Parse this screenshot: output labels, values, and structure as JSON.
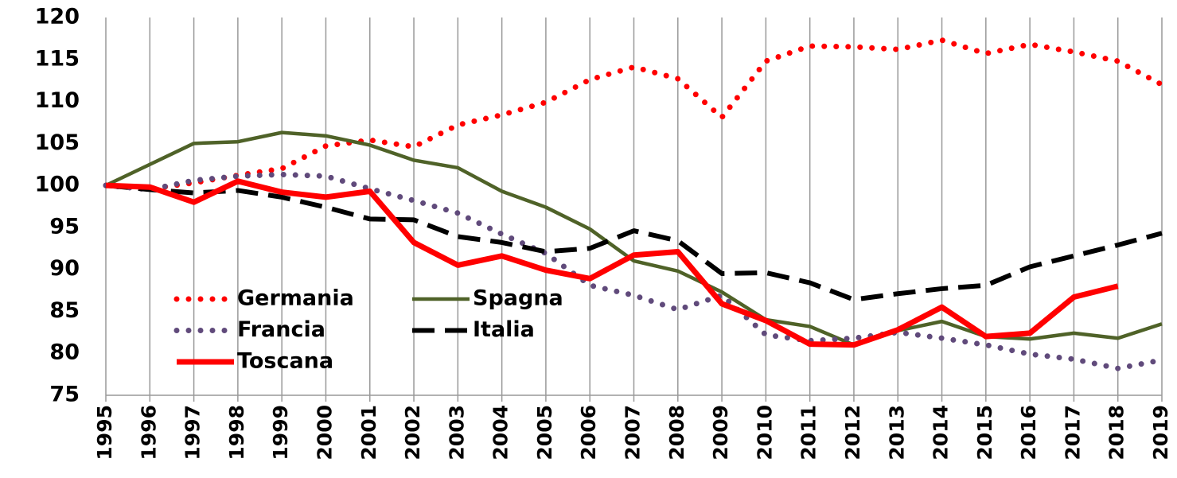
{
  "chart_data": {
    "type": "line",
    "categories": [
      "1995",
      "1996",
      "1997",
      "1998",
      "1999",
      "2000",
      "2001",
      "2002",
      "2003",
      "2004",
      "2005",
      "2006",
      "2007",
      "2008",
      "2009",
      "2010",
      "2011",
      "2012",
      "2013",
      "2014",
      "2015",
      "2016",
      "2017",
      "2018",
      "2019"
    ],
    "series": [
      {
        "name": "Germania",
        "color": "#ff0000",
        "line_style": "dotted",
        "line_width": 7,
        "values": [
          100,
          99.6,
          100.3,
          101.2,
          102,
          104.7,
          105.4,
          104.6,
          107.2,
          108.4,
          109.9,
          112.6,
          114.1,
          112.7,
          108.1,
          114.8,
          116.6,
          116.5,
          116.2,
          117.3,
          115.7,
          116.8,
          115.9,
          114.8,
          112
        ]
      },
      {
        "name": "Spagna",
        "color": "#4f6228",
        "line_style": "solid",
        "line_width": 4.5,
        "values": [
          100,
          102.5,
          105,
          105.2,
          106.3,
          105.9,
          104.8,
          103,
          102.1,
          99.3,
          97.4,
          94.8,
          91,
          89.8,
          87.3,
          84,
          83.2,
          81,
          82.7,
          83.8,
          82,
          81.7,
          82.4,
          81.8,
          83.5
        ]
      },
      {
        "name": "Francia",
        "color": "#604a7b",
        "line_style": "dotted",
        "line_width": 7,
        "values": [
          100,
          99.5,
          100.6,
          101.1,
          101.3,
          101.1,
          99.6,
          98.2,
          96.7,
          94.2,
          91.9,
          88.1,
          86.9,
          85.2,
          86.9,
          82.2,
          81.5,
          81.8,
          82.5,
          81.8,
          81,
          79.9,
          79.3,
          78.2,
          79.2
        ]
      },
      {
        "name": "Italia",
        "color": "#000000",
        "line_style": "dashed",
        "line_width": 6,
        "values": [
          100,
          99.5,
          99.1,
          99.4,
          98.6,
          97.4,
          96,
          95.9,
          93.9,
          93.2,
          92.1,
          92.5,
          94.6,
          93.4,
          89.5,
          89.6,
          88.4,
          86.4,
          87.1,
          87.7,
          88.1,
          90.3,
          91.6,
          92.9,
          94.3
        ]
      },
      {
        "name": "Toscana",
        "color": "#ff0000",
        "line_style": "solid",
        "line_width": 7,
        "values": [
          100,
          99.8,
          98,
          100.5,
          99.2,
          98.6,
          99.3,
          93.2,
          90.5,
          91.6,
          89.9,
          88.9,
          91.7,
          92.1,
          85.9,
          83.9,
          81.1,
          81,
          82.8,
          85.5,
          82,
          82.4,
          86.7,
          88,
          null
        ]
      }
    ],
    "ylim": [
      75,
      120
    ],
    "yticks": [
      75,
      80,
      85,
      90,
      95,
      100,
      105,
      110,
      115,
      120
    ],
    "x_grid": true,
    "legend": "lower left"
  }
}
